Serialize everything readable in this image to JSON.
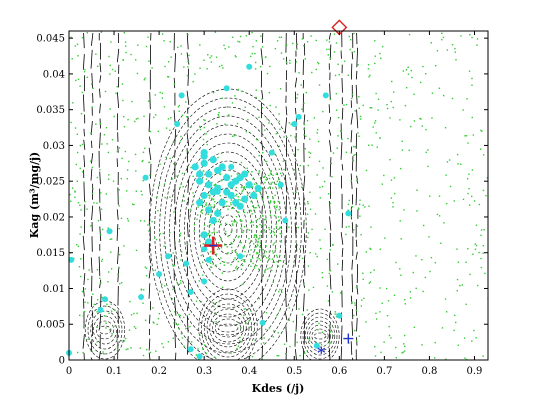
{
  "chart_data": {
    "type": "scatter",
    "title": "",
    "xlabel": "Kdes (/j)",
    "ylabel": "Kag (m³/mg/j)",
    "xlim": [
      0,
      0.93
    ],
    "ylim": [
      0,
      0.046
    ],
    "x_ticks": [
      0,
      0.1,
      0.2,
      0.3,
      0.4,
      0.5,
      0.6,
      0.7,
      0.8,
      0.9
    ],
    "x_tick_labels": [
      "0",
      "0.1",
      "0.2",
      "0.3",
      "0.4",
      "0.5",
      "0.6",
      "0.7",
      "0.8",
      "0.9"
    ],
    "y_ticks": [
      0,
      0.005,
      0.01,
      0.015,
      0.02,
      0.025,
      0.03,
      0.035,
      0.04,
      0.045
    ],
    "y_tick_labels": [
      "0",
      "0.005",
      "0.01",
      "0.015",
      "0.02",
      "0.025",
      "0.03",
      "0.035",
      "0.04",
      "0.045"
    ],
    "grid": false,
    "colors": {
      "background_points": "#33cc33",
      "cyan_points": "#33dddd",
      "contours": "#000000",
      "best_cross": "#dd2222",
      "blue_marker": "#2233cc",
      "diamond": "#dd2222"
    },
    "series": [
      {
        "marker": "cyan-dot",
        "x": [
          0.0,
          0.005,
          0.07,
          0.08,
          0.09,
          0.16,
          0.17,
          0.2,
          0.22,
          0.24,
          0.25,
          0.26,
          0.27,
          0.27,
          0.29,
          0.3,
          0.31,
          0.33,
          0.35,
          0.36,
          0.38,
          0.4,
          0.43,
          0.45,
          0.47,
          0.48,
          0.5,
          0.51,
          0.55,
          0.57,
          0.6,
          0.62,
          0.3
        ],
        "y": [
          0.001,
          0.014,
          0.007,
          0.0085,
          0.018,
          0.0088,
          0.0255,
          0.012,
          0.0145,
          0.033,
          0.037,
          0.0135,
          0.0095,
          0.0015,
          0.0005,
          0.0155,
          0.014,
          0.0235,
          0.038,
          0.027,
          0.0145,
          0.041,
          0.0052,
          0.029,
          0.0245,
          0.0195,
          0.033,
          0.034,
          0.002,
          0.037,
          0.0062,
          0.0205,
          0.011
        ]
      },
      {
        "marker": "cyan-cluster",
        "x": [
          0.28,
          0.29,
          0.3,
          0.31,
          0.32,
          0.3,
          0.29,
          0.31,
          0.33,
          0.34,
          0.35,
          0.33,
          0.32,
          0.3,
          0.29,
          0.31,
          0.36,
          0.37,
          0.38,
          0.39,
          0.4,
          0.41,
          0.42,
          0.39,
          0.38,
          0.37,
          0.36,
          0.35,
          0.34,
          0.33,
          0.32,
          0.3,
          0.31,
          0.3
        ],
        "y": [
          0.027,
          0.026,
          0.0275,
          0.026,
          0.028,
          0.0285,
          0.025,
          0.0245,
          0.0265,
          0.027,
          0.0255,
          0.024,
          0.0235,
          0.023,
          0.022,
          0.021,
          0.0245,
          0.025,
          0.0255,
          0.026,
          0.0245,
          0.023,
          0.024,
          0.0225,
          0.0215,
          0.022,
          0.023,
          0.0235,
          0.022,
          0.0205,
          0.0195,
          0.0175,
          0.0165,
          0.029
        ]
      },
      {
        "marker": "red-cross",
        "x": [
          0.32
        ],
        "y": [
          0.016
        ]
      },
      {
        "marker": "blue-star",
        "x": [
          0.56
        ],
        "y": [
          0.001
        ]
      },
      {
        "marker": "blue-cross",
        "x": [
          0.62
        ],
        "y": [
          0.003
        ]
      },
      {
        "marker": "red-diamond",
        "x": [
          0.6
        ],
        "y": [
          0.0465
        ]
      }
    ]
  }
}
